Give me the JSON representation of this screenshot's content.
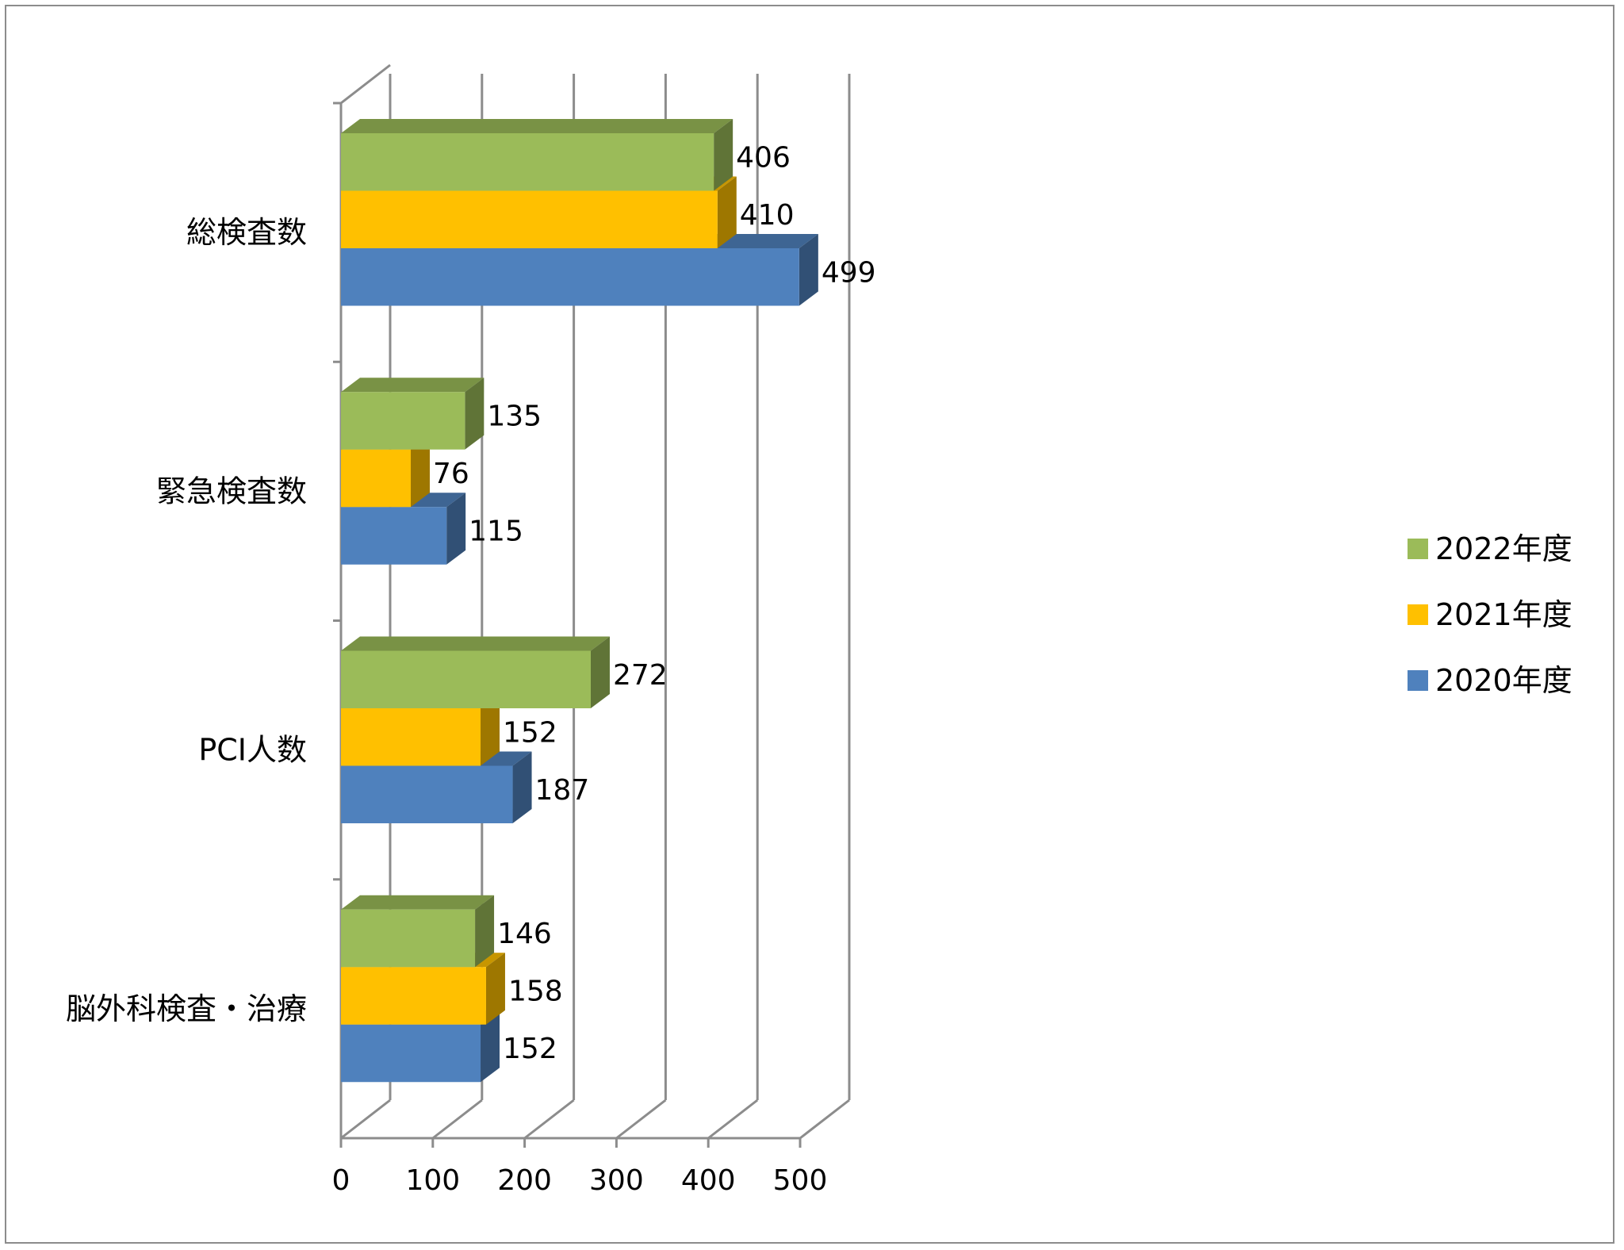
{
  "chart_data": {
    "type": "bar",
    "orientation": "horizontal",
    "style": "3d-clustered-bar",
    "categories": [
      "総検査数",
      "緊急検査数",
      "PCI人数",
      "脳外科検査・治療"
    ],
    "series": [
      {
        "name": "2022年度",
        "color": "#9BBB59",
        "values": [
          406,
          135,
          272,
          146
        ]
      },
      {
        "name": "2021年度",
        "color": "#FFC000",
        "values": [
          410,
          76,
          152,
          158
        ]
      },
      {
        "name": "2020年度",
        "color": "#4F81BD",
        "values": [
          499,
          115,
          187,
          152
        ]
      }
    ],
    "xlim": [
      0,
      500
    ],
    "x_ticks": [
      "0",
      "100",
      "200",
      "300",
      "400",
      "500"
    ],
    "grid": true,
    "legend_position": "right",
    "title": "",
    "xlabel": "",
    "ylabel": ""
  }
}
